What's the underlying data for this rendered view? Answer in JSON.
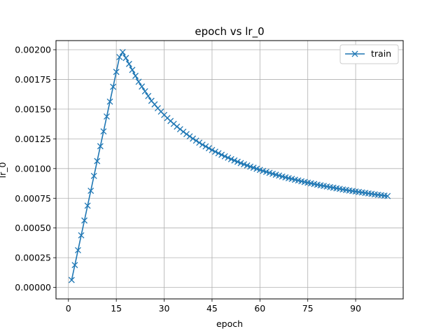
{
  "chart_data": {
    "type": "line",
    "title": "epoch vs lr_0",
    "xlabel": "epoch",
    "ylabel": "lr_0",
    "xlim": [
      -3.9,
      104.9
    ],
    "ylim": [
      -9.66e-05,
      0.0020766
    ],
    "xticks": [
      0,
      15,
      30,
      45,
      60,
      75,
      90
    ],
    "xtick_labels": [
      "0",
      "15",
      "30",
      "45",
      "60",
      "75",
      "90"
    ],
    "yticks": [
      0,
      0.00025,
      0.0005,
      0.00075,
      0.001,
      0.00125,
      0.0015,
      0.00175,
      0.002
    ],
    "ytick_labels": [
      "0.00000",
      "0.00025",
      "0.00050",
      "0.00075",
      "0.00100",
      "0.00125",
      "0.00150",
      "0.00175",
      "0.00200"
    ],
    "grid": true,
    "legend_position": "top-right",
    "series": [
      {
        "name": "train",
        "color": "#1f77b4",
        "marker": "x",
        "x": [
          1,
          2,
          3,
          4,
          5,
          6,
          7,
          8,
          9,
          10,
          11,
          12,
          13,
          14,
          15,
          16,
          17,
          18,
          19,
          20,
          21,
          22,
          23,
          24,
          25,
          26,
          27,
          28,
          29,
          30,
          31,
          32,
          33,
          34,
          35,
          36,
          37,
          38,
          39,
          40,
          41,
          42,
          43,
          44,
          45,
          46,
          47,
          48,
          49,
          50,
          51,
          52,
          53,
          54,
          55,
          56,
          57,
          58,
          59,
          60,
          61,
          62,
          63,
          64,
          65,
          66,
          67,
          68,
          69,
          70,
          71,
          72,
          73,
          74,
          75,
          76,
          77,
          78,
          79,
          80,
          81,
          82,
          83,
          84,
          85,
          86,
          87,
          88,
          89,
          90,
          91,
          92,
          93,
          94,
          95,
          96,
          97,
          98,
          99,
          100
        ],
        "y": [
          6.25e-05,
          0.000188,
          0.000313,
          0.000438,
          0.000563,
          0.000688,
          0.000813,
          0.000938,
          0.001063,
          0.001188,
          0.001313,
          0.001438,
          0.001563,
          0.001688,
          0.001813,
          0.001938,
          0.00198,
          0.00193,
          0.00188,
          0.00183,
          0.00178,
          0.00173,
          0.00169,
          0.00165,
          0.00161,
          0.00157,
          0.00154,
          0.001508,
          0.001479,
          0.001451,
          0.001425,
          0.0014,
          0.001376,
          0.001353,
          0.001331,
          0.00131,
          0.00129,
          0.001271,
          0.001252,
          0.001235,
          0.001218,
          0.001201,
          0.001186,
          0.001171,
          0.001156,
          0.001142,
          0.001129,
          0.001116,
          0.001103,
          0.001091,
          0.001079,
          0.001068,
          0.001057,
          0.001046,
          0.001036,
          0.001026,
          0.001016,
          0.001007,
          0.000998,
          0.000989,
          0.00098,
          0.000972,
          0.000964,
          0.000956,
          0.000948,
          0.000941,
          0.000933,
          0.000926,
          0.000919,
          0.000913,
          0.000906,
          0.0009,
          0.000893,
          0.000887,
          0.000881,
          0.000876,
          0.00087,
          0.000864,
          0.000859,
          0.000854,
          0.000849,
          0.000844,
          0.000839,
          0.000834,
          0.000829,
          0.000824,
          0.00082,
          0.000815,
          0.000811,
          0.000807,
          0.000803,
          0.000799,
          0.000795,
          0.000791,
          0.000787,
          0.000783,
          0.000779,
          0.000776,
          0.000772,
          0.000769
        ]
      }
    ]
  }
}
